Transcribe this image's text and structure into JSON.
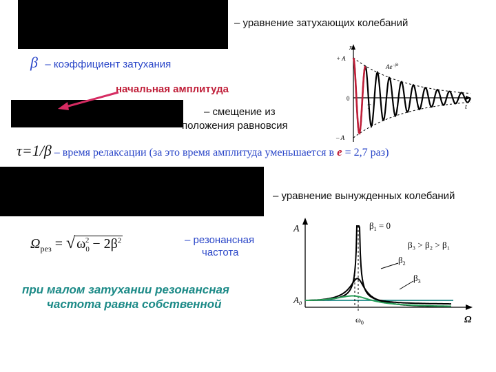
{
  "damped": {
    "equation_caption": "– уравнение затухающих колебаний",
    "beta_symbol": "β",
    "beta_caption": "– коэффициент затухания",
    "initial_amplitude_label": "начальная амплитуда",
    "displacement_caption_line1": "– смещение из",
    "displacement_caption_line2": "положения равновсия",
    "relax_formula": "τ=1/β",
    "relax_caption_pre": " – время релаксации (за это время амплитуда уменьшается в ",
    "relax_e": "e",
    "relax_caption_post": " = 2,7 раз)",
    "graph": {
      "axis_x": "x",
      "axis_t": "t",
      "plus_a": "+ A",
      "minus_a": "– A",
      "zero": "0",
      "envelope": "Ae",
      "envelope_exp": "−βt",
      "period": "T"
    }
  },
  "forced": {
    "equation_caption": "– уравнение вынужденных колебаний",
    "omega_res_formula": "Ωрез = √(ω₀² − 2β²)",
    "omega": "Ω",
    "omega_sub": "рез",
    "eq_sign": "=",
    "omega0": "ω",
    "sub0": "0",
    "sup2": "2",
    "minus": " − 2β",
    "sup2b": "2",
    "resonance_caption_line1": "– резонансная",
    "resonance_caption_line2": "частота",
    "note_line1": "при малом затухании резонансная",
    "note_line2": "частота равна собственной",
    "graph": {
      "axis_a": "A",
      "axis_omega": "Ω",
      "a0": "A",
      "a0_sub": "0",
      "omega0": "ω",
      "omega0_sub": "0",
      "beta1": "β",
      "beta1_sub": "1",
      "beta1_eq": " = 0",
      "relation": "β₃ > β₂ > β₁",
      "beta2": "β",
      "beta2_sub": "2",
      "beta3": "β",
      "beta3_sub": "3"
    }
  },
  "colors": {
    "red": "#c0203a",
    "blue": "#2a46c8",
    "teal": "#1c8a87",
    "green": "#2aa05a",
    "black": "#000000"
  }
}
